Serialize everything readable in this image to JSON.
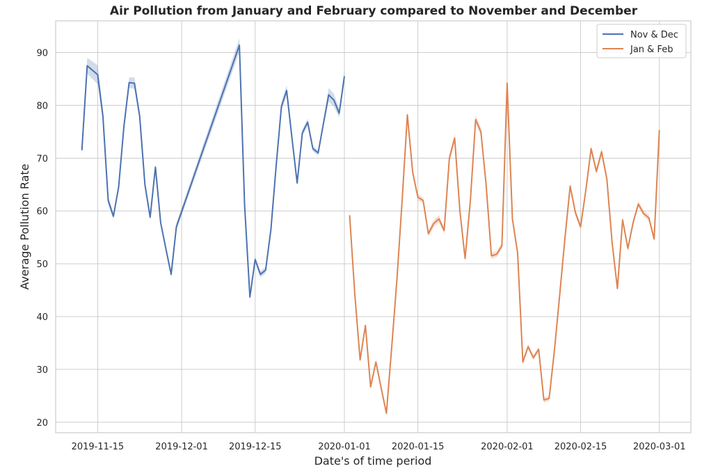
{
  "chart_data": {
    "type": "line",
    "title": "Air Pollution from January and February compared to November and December",
    "xlabel": "Date's of time period",
    "ylabel": "Average Pollution Rate",
    "x_ticks": [
      "2019-11-15",
      "2019-12-01",
      "2019-12-15",
      "2020-01-01",
      "2020-01-15",
      "2020-02-01",
      "2020-02-15",
      "2020-03-01"
    ],
    "y_ticks": [
      20,
      30,
      40,
      50,
      60,
      70,
      80,
      90
    ],
    "xlim": [
      "2019-11-07",
      "2020-03-07"
    ],
    "ylim": [
      18,
      96
    ],
    "grid": true,
    "legend_position": "top-right",
    "series": [
      {
        "name": "Nov & Dec",
        "color": "#4c72b0",
        "points": [
          [
            "2019-11-12",
            71.5
          ],
          [
            "2019-11-13",
            87.5
          ],
          [
            "2019-11-15",
            85.8
          ],
          [
            "2019-11-16",
            78
          ],
          [
            "2019-11-17",
            62
          ],
          [
            "2019-11-18",
            59
          ],
          [
            "2019-11-19",
            64.5
          ],
          [
            "2019-11-20",
            76
          ],
          [
            "2019-11-21",
            84.3
          ],
          [
            "2019-11-22",
            84.2
          ],
          [
            "2019-11-23",
            78
          ],
          [
            "2019-11-24",
            65
          ],
          [
            "2019-11-25",
            58.8
          ],
          [
            "2019-11-26",
            68.3
          ],
          [
            "2019-11-27",
            57.8
          ],
          [
            "2019-11-28",
            52.8
          ],
          [
            "2019-11-29",
            48
          ],
          [
            "2019-11-30",
            57
          ],
          [
            "2019-12-12",
            91.4
          ],
          [
            "2019-12-13",
            61
          ],
          [
            "2019-12-14",
            43.7
          ],
          [
            "2019-12-15",
            50.8
          ],
          [
            "2019-12-16",
            48
          ],
          [
            "2019-12-17",
            48.8
          ],
          [
            "2019-12-18",
            56.5
          ],
          [
            "2019-12-19",
            68.5
          ],
          [
            "2019-12-20",
            79.8
          ],
          [
            "2019-12-21",
            82.8
          ],
          [
            "2019-12-22",
            74
          ],
          [
            "2019-12-23",
            65.3
          ],
          [
            "2019-12-24",
            74.8
          ],
          [
            "2019-12-25",
            76.8
          ],
          [
            "2019-12-26",
            71.8
          ],
          [
            "2019-12-27",
            71
          ],
          [
            "2019-12-28",
            76.5
          ],
          [
            "2019-12-29",
            82
          ],
          [
            "2019-12-30",
            81
          ],
          [
            "2019-12-31",
            78.5
          ],
          [
            "2020-01-01",
            85.5
          ]
        ],
        "ci": [
          1.0,
          1.5,
          1.8,
          1.2,
          0.8,
          0.6,
          0.6,
          0.8,
          1.0,
          1.1,
          0.9,
          0.7,
          0.5,
          0.6,
          0.5,
          0.5,
          0.6,
          0.7,
          1.3,
          0.8,
          0.6,
          0.6,
          0.6,
          0.6,
          0.5,
          0.6,
          0.8,
          1.0,
          0.7,
          0.5,
          0.6,
          0.7,
          0.5,
          0.5,
          0.6,
          1.3,
          1.2,
          0.8,
          1.0
        ]
      },
      {
        "name": "Jan & Feb",
        "color": "#dd8452",
        "points": [
          [
            "2020-01-02",
            59.2
          ],
          [
            "2020-01-03",
            44
          ],
          [
            "2020-01-04",
            31.8
          ],
          [
            "2020-01-05",
            38.3
          ],
          [
            "2020-01-06",
            26.7
          ],
          [
            "2020-01-07",
            31.4
          ],
          [
            "2020-01-08",
            26.5
          ],
          [
            "2020-01-09",
            21.7
          ],
          [
            "2020-01-10",
            34
          ],
          [
            "2020-01-11",
            47
          ],
          [
            "2020-01-12",
            62
          ],
          [
            "2020-01-13",
            78.2
          ],
          [
            "2020-01-14",
            67.4
          ],
          [
            "2020-01-15",
            62.6
          ],
          [
            "2020-01-16",
            62
          ],
          [
            "2020-01-17",
            55.7
          ],
          [
            "2020-01-18",
            57.6
          ],
          [
            "2020-01-19",
            58.5
          ],
          [
            "2020-01-20",
            56.3
          ],
          [
            "2020-01-21",
            70
          ],
          [
            "2020-01-22",
            73.8
          ],
          [
            "2020-01-23",
            60
          ],
          [
            "2020-01-24",
            51
          ],
          [
            "2020-01-25",
            62
          ],
          [
            "2020-01-26",
            77.3
          ],
          [
            "2020-01-27",
            75
          ],
          [
            "2020-01-28",
            65
          ],
          [
            "2020-01-29",
            51.5
          ],
          [
            "2020-01-30",
            51.8
          ],
          [
            "2020-01-31",
            53.4
          ],
          [
            "2020-02-01",
            84.2
          ],
          [
            "2020-02-02",
            58.5
          ],
          [
            "2020-02-03",
            52
          ],
          [
            "2020-02-04",
            31.4
          ],
          [
            "2020-02-05",
            34.3
          ],
          [
            "2020-02-06",
            32.2
          ],
          [
            "2020-02-07",
            33.8
          ],
          [
            "2020-02-08",
            24.2
          ],
          [
            "2020-02-09",
            24.5
          ],
          [
            "2020-02-10",
            33.5
          ],
          [
            "2020-02-11",
            44
          ],
          [
            "2020-02-12",
            54.7
          ],
          [
            "2020-02-13",
            64.7
          ],
          [
            "2020-02-14",
            59.7
          ],
          [
            "2020-02-15",
            57
          ],
          [
            "2020-02-16",
            64
          ],
          [
            "2020-02-17",
            71.8
          ],
          [
            "2020-02-18",
            67.5
          ],
          [
            "2020-02-19",
            71.2
          ],
          [
            "2020-02-20",
            66
          ],
          [
            "2020-02-21",
            54
          ],
          [
            "2020-02-22",
            45.3
          ],
          [
            "2020-02-23",
            58.3
          ],
          [
            "2020-02-24",
            52.9
          ],
          [
            "2020-02-25",
            57.8
          ],
          [
            "2020-02-26",
            61.3
          ],
          [
            "2020-02-27",
            59.5
          ],
          [
            "2020-02-28",
            58.7
          ],
          [
            "2020-02-29",
            54.7
          ],
          [
            "2020-03-01",
            75.3
          ]
        ],
        "ci": [
          0.6,
          0.5,
          0.5,
          0.5,
          0.5,
          0.5,
          0.5,
          0.5,
          0.5,
          0.5,
          0.6,
          0.8,
          0.7,
          0.6,
          0.6,
          0.6,
          0.7,
          0.7,
          0.6,
          0.7,
          0.8,
          0.6,
          0.5,
          0.6,
          0.8,
          0.8,
          0.7,
          0.6,
          0.6,
          0.6,
          0.9,
          0.7,
          0.6,
          0.5,
          0.5,
          0.5,
          0.5,
          0.5,
          0.5,
          0.5,
          0.5,
          0.6,
          0.6,
          0.6,
          0.6,
          0.6,
          0.7,
          0.7,
          0.7,
          0.6,
          0.6,
          0.5,
          0.6,
          0.6,
          0.6,
          0.6,
          0.6,
          0.6,
          0.6,
          0.9
        ]
      }
    ]
  }
}
